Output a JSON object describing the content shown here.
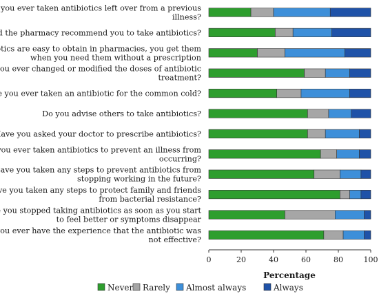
{
  "chart_data": {
    "type": "bar",
    "orientation": "horizontal",
    "stacked": true,
    "title": "",
    "xlabel": "Percentage",
    "ylabel": "",
    "xlim": [
      0,
      100
    ],
    "xticks": [
      "0",
      "20",
      "40",
      "60",
      "80",
      "100"
    ],
    "grid": false,
    "legend_position": "bottom",
    "categories": [
      [
        "Have you ever taken antibiotics left over from a previous",
        "illness?"
      ],
      [
        "Did the pharmacy recommend you to take antibiotics?"
      ],
      [
        "Antibiotics are easy to obtain in pharmacies, you get them",
        "when you need them without a prescription"
      ],
      [
        "Have you ever changed or modified the doses of antibiotic",
        "treatment?"
      ],
      [
        "Have you ever taken an antibiotic for the common cold?"
      ],
      [
        "Do you advise others to take antibiotics?"
      ],
      [
        "Have you asked your doctor to prescribe antibiotics?"
      ],
      [
        "Have you ever taken antibiotics to prevent an illness from",
        "occurring?"
      ],
      [
        "Have you taken any steps to prevent antibiotics from",
        "stopping working in the future?"
      ],
      [
        "Have you taken any steps to protect family and friends",
        "from bacterial resistance?"
      ],
      [
        "Have you stopped taking antibiotics as soon as you start",
        "to feel better or symptoms disappear"
      ],
      [
        "Did you ever have the experience that the antibiotic was",
        "not effective?"
      ]
    ],
    "series": [
      {
        "name": "Never",
        "color": "#2e9e2e",
        "values": [
          26,
          41,
          30,
          59,
          42,
          61,
          61,
          69,
          65,
          81,
          47,
          71
        ]
      },
      {
        "name": "Rarely",
        "color": "#a6a6a6",
        "values": [
          14,
          11,
          17,
          13,
          15,
          13,
          11,
          10,
          16,
          6,
          31,
          12
        ]
      },
      {
        "name": "Almost always",
        "color": "#3d8fd9",
        "values": [
          35,
          24,
          37,
          15,
          30,
          14,
          21,
          14,
          13,
          7,
          18,
          13
        ]
      },
      {
        "name": "Always",
        "color": "#1f52a8",
        "values": [
          25,
          24,
          16,
          13,
          13,
          12,
          7,
          7,
          6,
          6,
          4,
          4
        ]
      }
    ]
  }
}
